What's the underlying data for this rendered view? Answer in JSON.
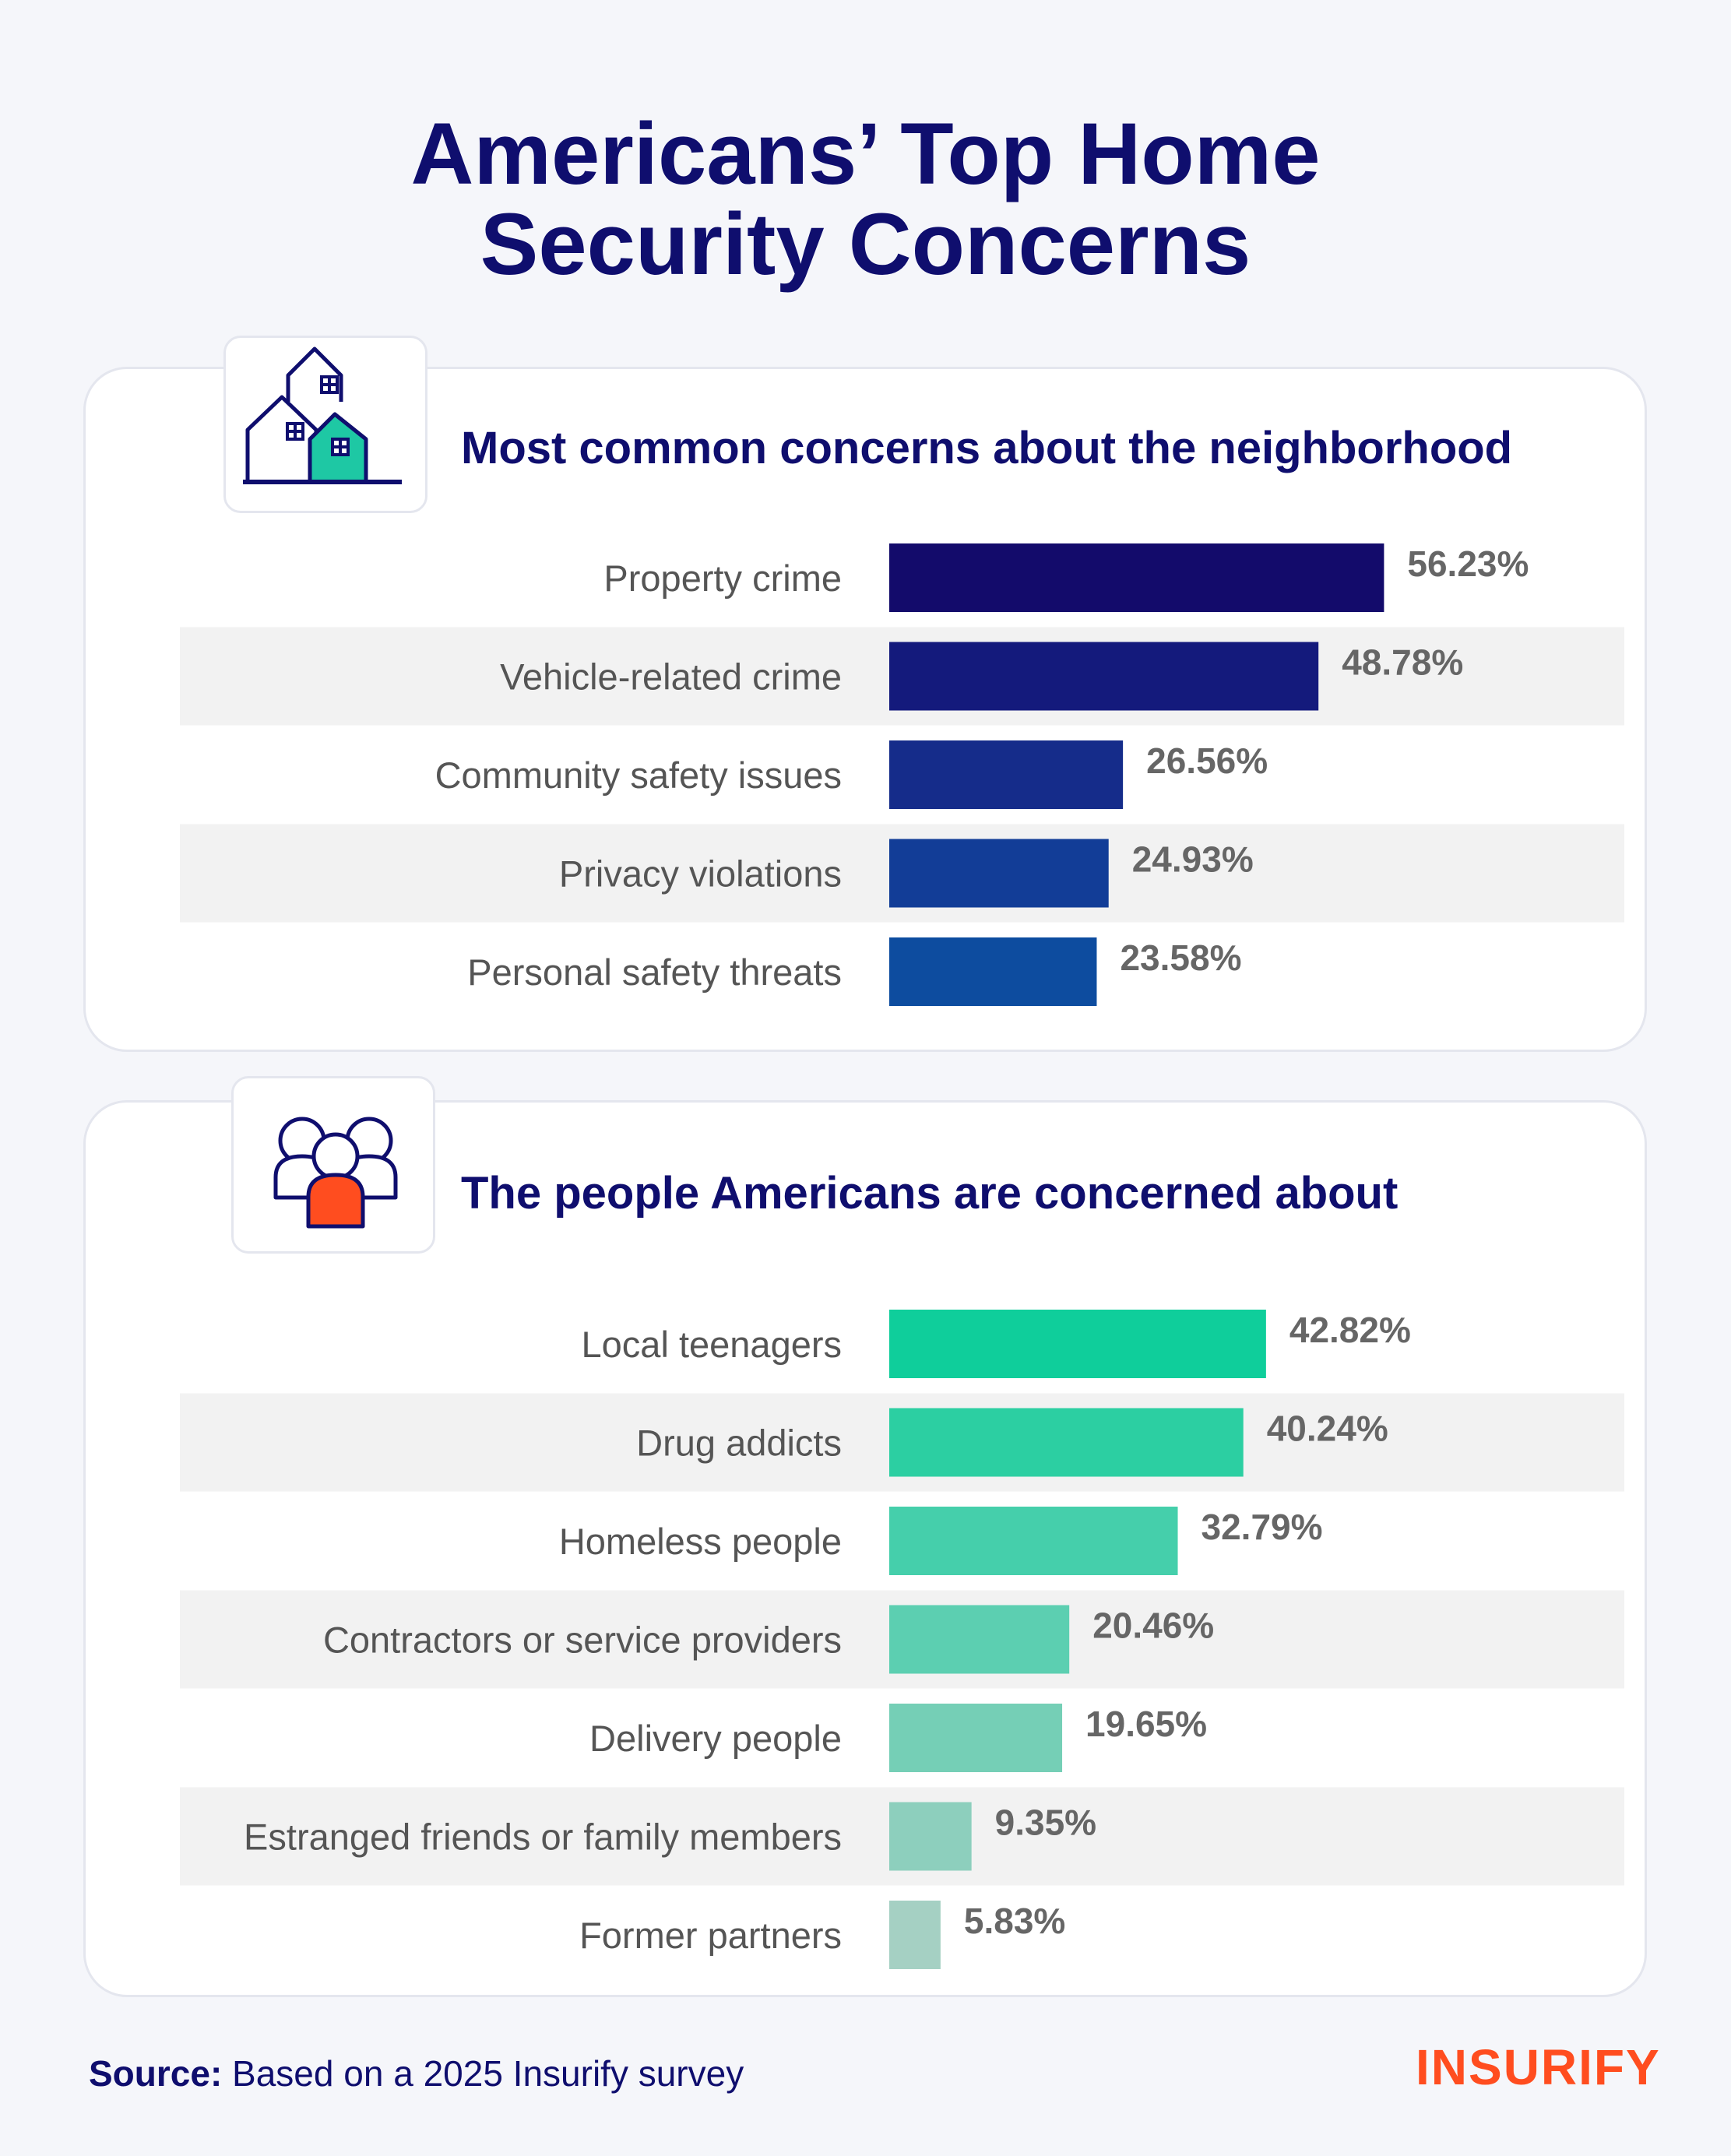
{
  "title": {
    "line1": "Americans’ Top Home",
    "line2": "Security Concerns"
  },
  "icons": {
    "section1": "houses-icon",
    "section2": "people-group-icon"
  },
  "colors": {
    "title": "#0f0e6e",
    "band": "#f2f2f2",
    "label": "#555555",
    "value": "#666666",
    "brand": "#ff4d1f"
  },
  "chart_data": [
    {
      "type": "bar",
      "orientation": "horizontal",
      "title": "Most common concerns about the neighborhood",
      "unit": "%",
      "categories": [
        "Property crime",
        "Vehicle-related crime",
        "Community safety issues",
        "Privacy violations",
        "Personal safety threats"
      ],
      "values": [
        56.23,
        48.78,
        26.56,
        24.93,
        23.58
      ],
      "value_labels": [
        "56.23%",
        "48.78%",
        "26.56%",
        "24.93%",
        "23.58%"
      ],
      "colors": [
        "#130b6b",
        "#141a7c",
        "#152c8a",
        "#123d97",
        "#0d4c9f"
      ],
      "grid": false
    },
    {
      "type": "bar",
      "orientation": "horizontal",
      "title": "The people Americans are concerned about",
      "unit": "%",
      "categories": [
        "Local teenagers",
        "Drug addicts",
        "Homeless people",
        "Contractors or service providers",
        "Delivery people",
        "Estranged friends or family members",
        "Former partners"
      ],
      "values": [
        42.82,
        40.24,
        32.79,
        20.46,
        19.65,
        9.35,
        5.83
      ],
      "value_labels": [
        "42.82%",
        "40.24%",
        "32.79%",
        "20.46%",
        "19.65%",
        "9.35%",
        "5.83%"
      ],
      "colors": [
        "#0fce9b",
        "#2ccfa2",
        "#45cfab",
        "#5ccfb1",
        "#75cfb6",
        "#8dcfbd",
        "#a5d0c3"
      ],
      "grid": false
    }
  ],
  "footer": {
    "source_label": "Source:",
    "source_text": " Based on a 2025 Insurify survey",
    "brand": "INSURIFY"
  }
}
